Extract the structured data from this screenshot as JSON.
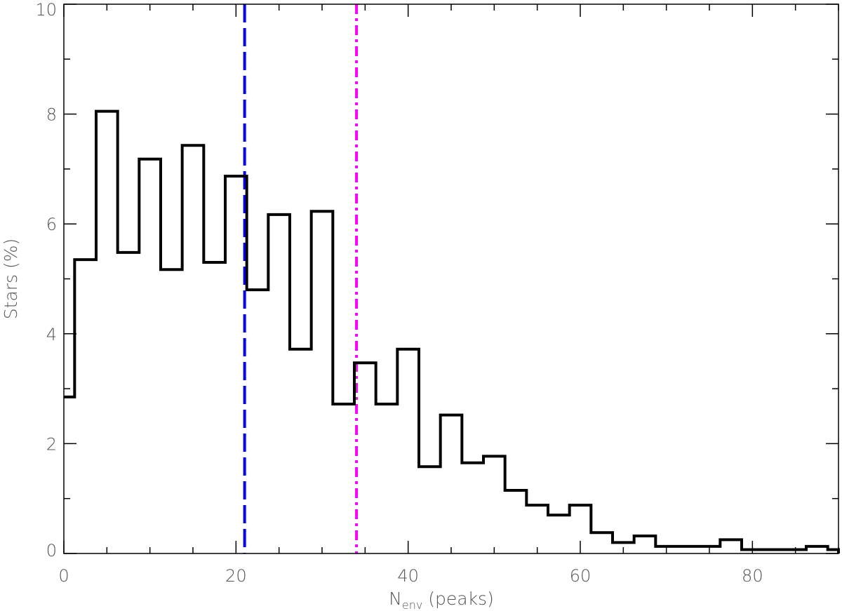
{
  "chart_data": {
    "type": "histogram",
    "xlabel": "N",
    "xlabel_subscript": "env",
    "xlabel_suffix": " (peaks)",
    "ylabel": "Stars (%)",
    "xlim": [
      0,
      90
    ],
    "ylim": [
      0,
      10
    ],
    "x_ticks": [
      0,
      20,
      40,
      60,
      80
    ],
    "y_ticks": [
      0,
      2,
      4,
      6,
      8,
      10
    ],
    "x_minor_step": 5,
    "y_minor_step": 1,
    "bin_width": 2.5,
    "bin_start": -1.25,
    "values": [
      2.85,
      5.35,
      8.05,
      5.48,
      7.18,
      5.17,
      7.43,
      5.3,
      6.87,
      4.8,
      6.17,
      3.72,
      6.23,
      2.72,
      3.47,
      2.72,
      3.72,
      1.58,
      2.52,
      1.65,
      1.77,
      1.15,
      0.88,
      0.7,
      0.88,
      0.38,
      0.2,
      0.32,
      0.13,
      0.13,
      0.13,
      0.25,
      0.07,
      0.07,
      0.07,
      0.13,
      0.07,
      0.0
    ],
    "grid": false,
    "reference_lines": [
      {
        "x": 21.0,
        "color": "#0000ff",
        "style": "dashed"
      },
      {
        "x": 34.0,
        "color": "#ff00ff",
        "style": "dashdot"
      }
    ],
    "histogram_color": "#000000"
  }
}
